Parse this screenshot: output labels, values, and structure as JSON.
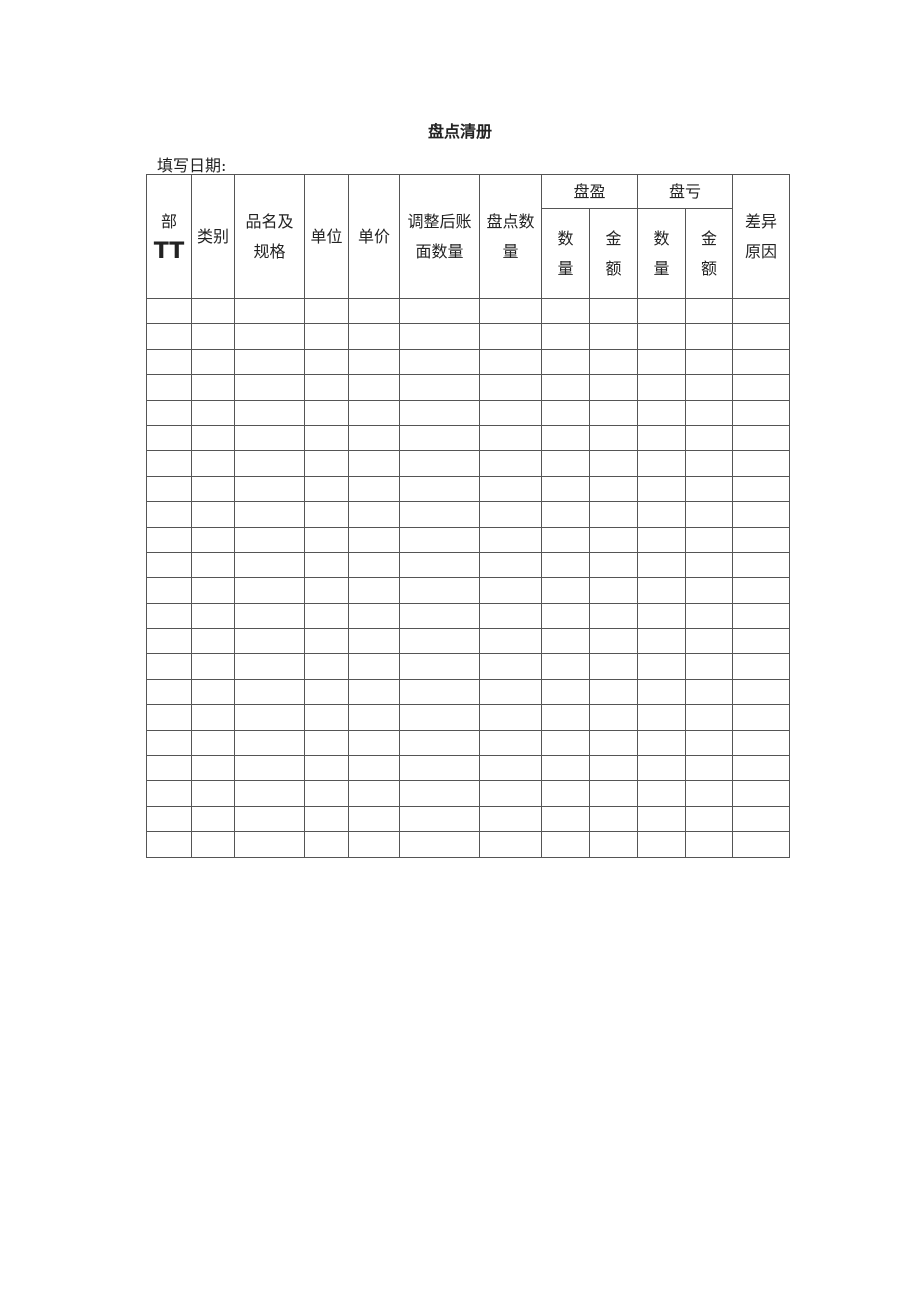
{
  "document": {
    "title": "盘点清册",
    "date_label": "填写日期:",
    "headers": {
      "dept": [
        "部",
        "TT"
      ],
      "category": [
        "类别"
      ],
      "name_spec": [
        "品名及",
        "规格"
      ],
      "unit": [
        "单位"
      ],
      "price": [
        "单价"
      ],
      "book_qty": [
        "调整后账",
        "面数量"
      ],
      "count_qty": [
        "盘点数",
        "量"
      ],
      "surplus": "盘盈",
      "loss": "盘亏",
      "qty": [
        "数",
        "量"
      ],
      "amount": [
        "金",
        "额"
      ],
      "reason": [
        "差异",
        "原因"
      ]
    },
    "empty_rows": 22
  }
}
